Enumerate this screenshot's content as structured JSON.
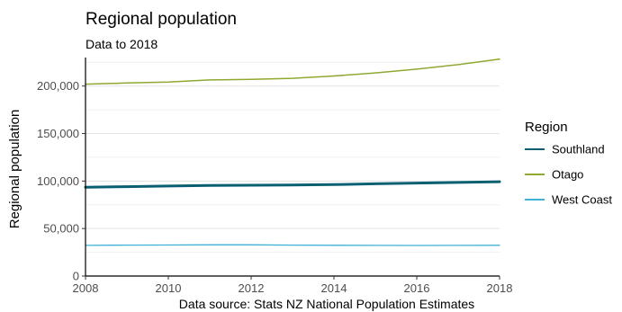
{
  "chart_data": {
    "type": "line",
    "title": "Regional population",
    "subtitle": "Data to 2018",
    "xlabel": "",
    "ylabel": "Regional population",
    "caption": "Data source: Stats NZ National Population Estimates",
    "x": [
      2008,
      2009,
      2010,
      2011,
      2012,
      2013,
      2014,
      2015,
      2016,
      2017,
      2018
    ],
    "xlim": [
      2008,
      2018
    ],
    "ylim": [
      0,
      230000
    ],
    "x_ticks": [
      {
        "value": 2008,
        "label": "2008"
      },
      {
        "value": 2010,
        "label": "2010"
      },
      {
        "value": 2012,
        "label": "2012"
      },
      {
        "value": 2014,
        "label": "2014"
      },
      {
        "value": 2016,
        "label": "2016"
      },
      {
        "value": 2018,
        "label": "2018"
      }
    ],
    "y_ticks": [
      {
        "value": 0,
        "label": "0"
      },
      {
        "value": 50000,
        "label": "50,000"
      },
      {
        "value": 100000,
        "label": "100,000"
      },
      {
        "value": 150000,
        "label": "150,000"
      },
      {
        "value": 200000,
        "label": "200,000"
      }
    ],
    "grid": "horizontal",
    "legend": {
      "title": "Region",
      "position": "right"
    },
    "series": [
      {
        "name": "Southland",
        "color": "#0b5f73",
        "values": [
          93500,
          94100,
          94700,
          95400,
          95600,
          95800,
          96300,
          97100,
          97900,
          98500,
          99300
        ]
      },
      {
        "name": "Otago",
        "color": "#8fa832",
        "values": [
          202000,
          203200,
          204300,
          206400,
          207000,
          208100,
          210600,
          213800,
          217800,
          222500,
          228400
        ]
      },
      {
        "name": "West Coast",
        "color": "#3fb0d6",
        "values": [
          32300,
          32600,
          32700,
          32800,
          32800,
          32600,
          32400,
          32300,
          32200,
          32300,
          32400
        ]
      }
    ]
  }
}
